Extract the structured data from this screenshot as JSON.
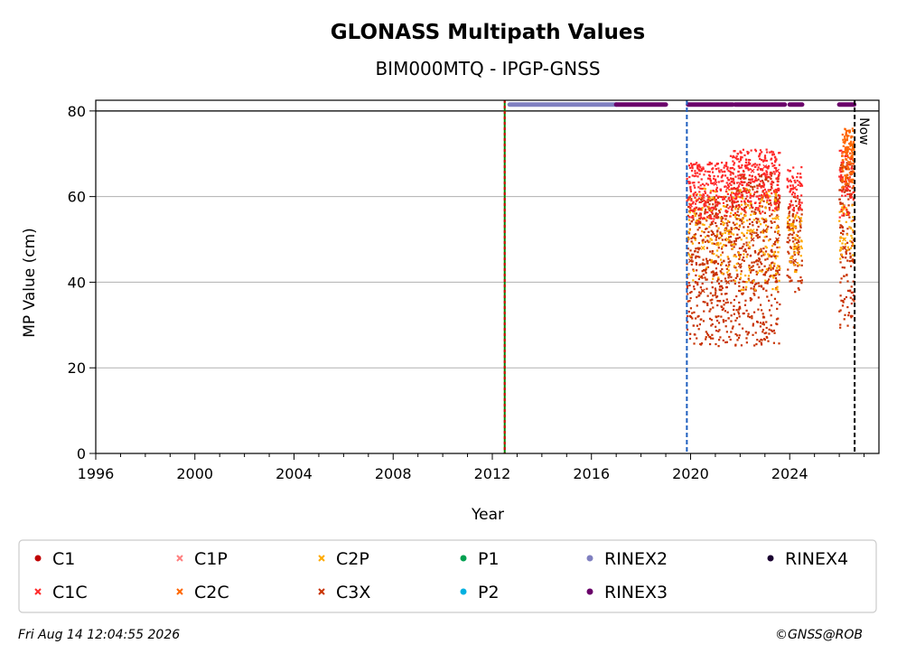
{
  "footer": {
    "timestamp": "Fri Aug 14 12:04:55 2026",
    "copyright": "©GNSS@ROB"
  },
  "chart_data": {
    "type": "scatter",
    "title": "GLONASS Multipath Values",
    "subtitle": "BIM000MTQ - IPGP-GNSS",
    "xlabel": "Year",
    "ylabel": "MP Value (cm)",
    "xlim": [
      1996,
      2027.6
    ],
    "ylim": [
      0,
      82.5
    ],
    "x_ticks": [
      1996,
      2000,
      2004,
      2008,
      2012,
      2016,
      2020,
      2024
    ],
    "y_ticks": [
      0,
      20,
      40,
      60,
      80
    ],
    "grid": "horizontal",
    "legend_position": "bottom",
    "now_label": "Now",
    "vertical_markers": [
      {
        "x": 2012.5,
        "colors": [
          "#008000",
          "#cc0000"
        ],
        "style": "dashed"
      },
      {
        "x": 2019.85,
        "colors": [
          "#1f5fbf"
        ],
        "style": "dashed"
      },
      {
        "x": 2026.62,
        "colors": [
          "#000000"
        ],
        "style": "dashed",
        "label": "Now"
      }
    ],
    "rinex_bands": [
      {
        "name": "RINEX2",
        "color": "#8080c0",
        "y": 81.5,
        "ranges": [
          [
            2012.7,
            2017.0
          ]
        ]
      },
      {
        "name": "RINEX3",
        "color": "#6a006a",
        "y": 81.5,
        "ranges": [
          [
            2017.0,
            2019.0
          ],
          [
            2019.9,
            2021.7
          ],
          [
            2021.8,
            2023.8
          ],
          [
            2024.0,
            2024.5
          ],
          [
            2026.0,
            2026.6
          ]
        ]
      }
    ],
    "series": [
      {
        "name": "C1",
        "color": "#c00000",
        "marker": "dot",
        "values": []
      },
      {
        "name": "C1C",
        "color": "#ff2a2a",
        "marker": "x",
        "values": [
          [
            2020.0,
            58
          ],
          [
            2020.5,
            60
          ],
          [
            2021.0,
            63
          ],
          [
            2021.5,
            62
          ],
          [
            2022.0,
            63
          ],
          [
            2022.5,
            66
          ],
          [
            2023.0,
            67
          ],
          [
            2023.5,
            66
          ],
          [
            2024.2,
            62
          ],
          [
            2026.3,
            62
          ]
        ]
      },
      {
        "name": "C1P",
        "color": "#ff7f7f",
        "marker": "x",
        "values": []
      },
      {
        "name": "C2C",
        "color": "#ff6600",
        "marker": "x",
        "values": [
          [
            2026.3,
            70
          ],
          [
            2026.4,
            68
          ],
          [
            2026.5,
            72
          ]
        ]
      },
      {
        "name": "C2P",
        "color": "#ffaa00",
        "marker": "x",
        "values": [
          [
            2020.5,
            48
          ],
          [
            2021.5,
            50
          ],
          [
            2022.5,
            52
          ],
          [
            2023.5,
            55
          ],
          [
            2024.2,
            48
          ],
          [
            2026.2,
            50
          ]
        ]
      },
      {
        "name": "C3X",
        "color": "#c83200",
        "marker": "x",
        "values": [
          [
            2020.0,
            45
          ],
          [
            2020.5,
            38
          ],
          [
            2021.0,
            42
          ],
          [
            2021.5,
            40
          ],
          [
            2022.0,
            44
          ],
          [
            2022.5,
            50
          ],
          [
            2023.0,
            52
          ],
          [
            2023.5,
            50
          ],
          [
            2024.2,
            45
          ],
          [
            2026.2,
            48
          ]
        ]
      },
      {
        "name": "P1",
        "color": "#00a050",
        "marker": "dot",
        "values": []
      },
      {
        "name": "P2",
        "color": "#00b0e0",
        "marker": "dot",
        "values": []
      },
      {
        "name": "RINEX2",
        "color": "#8080c0",
        "marker": "dot",
        "values": []
      },
      {
        "name": "RINEX3",
        "color": "#6a006a",
        "marker": "dot",
        "values": []
      },
      {
        "name": "RINEX4",
        "color": "#1a0030",
        "marker": "dot",
        "values": []
      }
    ],
    "clusters": [
      {
        "series": "C3X",
        "x0": 2019.85,
        "x1": 2021.6,
        "ymin": 25,
        "ymax": 60,
        "n": 420
      },
      {
        "series": "C3X",
        "x0": 2021.6,
        "x1": 2023.6,
        "ymin": 25,
        "ymax": 66,
        "n": 520
      },
      {
        "series": "C3X",
        "x0": 2023.9,
        "x1": 2024.5,
        "ymin": 37,
        "ymax": 60,
        "n": 110
      },
      {
        "series": "C3X",
        "x0": 2026.0,
        "x1": 2026.6,
        "ymin": 29,
        "ymax": 68,
        "n": 160
      },
      {
        "series": "C2P",
        "x0": 2019.85,
        "x1": 2023.6,
        "ymin": 38,
        "ymax": 62,
        "n": 260
      },
      {
        "series": "C2P",
        "x0": 2023.9,
        "x1": 2024.5,
        "ymin": 42,
        "ymax": 56,
        "n": 50
      },
      {
        "series": "C2P",
        "x0": 2026.0,
        "x1": 2026.6,
        "ymin": 45,
        "ymax": 58,
        "n": 40
      },
      {
        "series": "C1C",
        "x0": 2019.85,
        "x1": 2021.6,
        "ymin": 54,
        "ymax": 68,
        "n": 230
      },
      {
        "series": "C1C",
        "x0": 2021.6,
        "x1": 2023.6,
        "ymin": 56,
        "ymax": 71,
        "n": 300
      },
      {
        "series": "C1C",
        "x0": 2023.9,
        "x1": 2024.5,
        "ymin": 56,
        "ymax": 67,
        "n": 60
      },
      {
        "series": "C1C",
        "x0": 2026.0,
        "x1": 2026.6,
        "ymin": 55,
        "ymax": 72,
        "n": 60
      },
      {
        "series": "C2C",
        "x0": 2026.1,
        "x1": 2026.6,
        "ymin": 62,
        "ymax": 76,
        "n": 120
      }
    ]
  }
}
